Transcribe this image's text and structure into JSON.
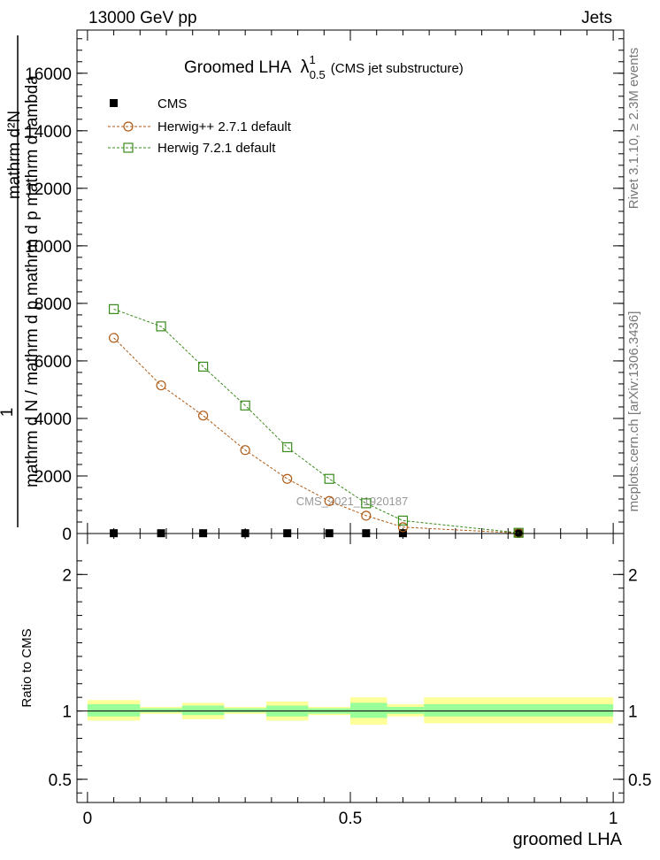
{
  "header": {
    "left_label": "13000 GeV pp",
    "right_label": "Jets"
  },
  "side_labels": {
    "rivet": "Rivet 3.1.10, ≥ 2.3M events",
    "mcplots": "mcplots.cern.ch [arXiv:1306.3436]"
  },
  "chart_data": [
    {
      "type": "line",
      "title": "Groomed LHA",
      "title_symbol": "λ",
      "title_sup": "1",
      "title_sub": "0.5",
      "subtitle": "(CMS jet substructure)",
      "xlabel": "",
      "ylabel_lines": [
        "mathrm d²N",
        "1",
        "mathrm d N / mathrm d p mathrm d p mathrm d lambda"
      ],
      "xlim": [
        -0.02,
        1.02
      ],
      "ylim": [
        0,
        17500
      ],
      "y_ticks": [
        {
          "value": 0,
          "label": "0"
        },
        {
          "value": 2000,
          "label": "2000"
        },
        {
          "value": 4000,
          "label": "4000"
        },
        {
          "value": 6000,
          "label": "6000"
        },
        {
          "value": 8000,
          "label": "8000"
        },
        {
          "value": 10000,
          "label": "10000"
        },
        {
          "value": 12000,
          "label": "12000"
        },
        {
          "value": 14000,
          "label": "14000"
        },
        {
          "value": 16000,
          "label": "16000"
        }
      ],
      "watermark": "CMS_2021_I1920187",
      "legend": [
        {
          "name": "CMS",
          "marker": "filled-square",
          "color": "#000000"
        },
        {
          "name": "Herwig++ 2.7.1 default",
          "marker": "open-circle",
          "color": "#b05a14"
        },
        {
          "name": "Herwig 7.2.1 default",
          "marker": "open-square",
          "color": "#3a8a1c"
        }
      ],
      "series": [
        {
          "name": "CMS",
          "x": [
            0.05,
            0.14,
            0.22,
            0.3,
            0.38,
            0.46,
            0.53,
            0.6,
            0.82
          ],
          "values": [
            10,
            10,
            10,
            10,
            10,
            10,
            10,
            10,
            10
          ]
        },
        {
          "name": "Herwig++ 2.7.1 default",
          "x": [
            0.05,
            0.14,
            0.22,
            0.3,
            0.38,
            0.46,
            0.53,
            0.6,
            0.82
          ],
          "values": [
            6800,
            5150,
            4100,
            2900,
            1900,
            1130,
            620,
            220,
            15
          ]
        },
        {
          "name": "Herwig 7.2.1 default",
          "x": [
            0.05,
            0.14,
            0.22,
            0.3,
            0.38,
            0.46,
            0.53,
            0.6,
            0.82
          ],
          "values": [
            7800,
            7200,
            5800,
            4450,
            3000,
            1900,
            1050,
            450,
            25
          ]
        }
      ]
    },
    {
      "type": "bar",
      "title": "",
      "xlabel": "groomed LHA",
      "ylabel": "Ratio to CMS",
      "xlim": [
        -0.02,
        1.02
      ],
      "ylim": [
        0.33,
        2.3
      ],
      "y_ticks": [
        {
          "value": 0.5,
          "label": "0.5"
        },
        {
          "value": 1,
          "label": "1"
        },
        {
          "value": 2,
          "label": "2"
        }
      ],
      "x_ticks": [
        {
          "value": 0,
          "label": "0"
        },
        {
          "value": 0.5,
          "label": "0.5"
        },
        {
          "value": 1,
          "label": "1"
        }
      ],
      "reference_line": 1,
      "colors": {
        "outer_band": "#ffff99",
        "inner_band": "#99ff99"
      },
      "bands": [
        {
          "x0": 0.0,
          "x1": 0.1,
          "outer": [
            0.93,
            1.08
          ],
          "inner": [
            0.96,
            1.05
          ]
        },
        {
          "x0": 0.1,
          "x1": 0.18,
          "outer": [
            0.98,
            1.03
          ],
          "inner": [
            0.99,
            1.02
          ]
        },
        {
          "x0": 0.18,
          "x1": 0.26,
          "outer": [
            0.94,
            1.06
          ],
          "inner": [
            0.97,
            1.04
          ]
        },
        {
          "x0": 0.26,
          "x1": 0.34,
          "outer": [
            0.98,
            1.03
          ],
          "inner": [
            0.99,
            1.02
          ]
        },
        {
          "x0": 0.34,
          "x1": 0.42,
          "outer": [
            0.93,
            1.07
          ],
          "inner": [
            0.96,
            1.04
          ]
        },
        {
          "x0": 0.42,
          "x1": 0.5,
          "outer": [
            0.97,
            1.03
          ],
          "inner": [
            0.98,
            1.02
          ]
        },
        {
          "x0": 0.5,
          "x1": 0.57,
          "outer": [
            0.9,
            1.1
          ],
          "inner": [
            0.95,
            1.06
          ]
        },
        {
          "x0": 0.57,
          "x1": 0.64,
          "outer": [
            0.96,
            1.05
          ],
          "inner": [
            0.98,
            1.03
          ]
        },
        {
          "x0": 0.64,
          "x1": 1.0,
          "outer": [
            0.91,
            1.1
          ],
          "inner": [
            0.96,
            1.05
          ]
        }
      ]
    }
  ]
}
